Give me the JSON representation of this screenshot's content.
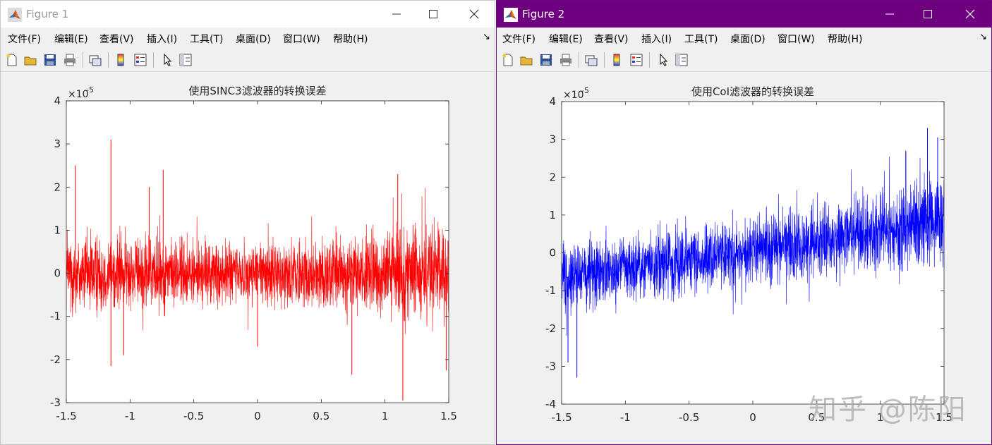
{
  "window1": {
    "title": "Figure 1",
    "menu": [
      "文件(F)",
      "编辑(E)",
      "查看(V)",
      "插入(I)",
      "工具(T)",
      "桌面(D)",
      "窗口(W)",
      "帮助(H)"
    ],
    "menu_arrow": "↘"
  },
  "window2": {
    "title": "Figure 2",
    "menu": [
      "文件(F)",
      "编辑(E)",
      "查看(V)",
      "插入(I)",
      "工具(T)",
      "桌面(D)",
      "窗口(W)",
      "帮助(H)"
    ],
    "menu_arrow": "↘",
    "titlebar_color": "#6e0080"
  },
  "toolbar_icons": [
    "new-figure-icon",
    "open-file-icon",
    "save-icon",
    "print-icon",
    "link-plot-icon",
    "insert-colorbar-icon",
    "insert-legend-icon",
    "edit-plot-arrow-icon",
    "property-inspector-icon"
  ],
  "watermark": "知乎 @陈阳",
  "chart_data": [
    {
      "type": "line",
      "title": "使用SINC3滤波器的转换误差",
      "exponent_label": "×10",
      "exponent": "-5",
      "xlim": [
        -1.5,
        1.5
      ],
      "ylim": [
        -3,
        4
      ],
      "xticks": [
        -1.5,
        -1,
        -0.5,
        0,
        0.5,
        1,
        1.5
      ],
      "yticks": [
        -3,
        -2,
        -1,
        0,
        1,
        2,
        3,
        4
      ],
      "xtick_labels": [
        "-1.5",
        "-1",
        "-0.5",
        "0",
        "0.5",
        "1",
        "1.5"
      ],
      "ytick_labels": [
        "-3",
        "-2",
        "-1",
        "0",
        "1",
        "2",
        "3",
        "4"
      ],
      "color": "#ff0000",
      "series": [
        {
          "description": "dense noise centered at 0, band about ±1.0 (×1e-5) with spikes",
          "x": [
            -1.5,
            -1.0,
            -0.5,
            0,
            0.5,
            1.0,
            1.5
          ],
          "y_center": [
            0,
            0,
            0,
            0,
            0,
            0,
            0
          ],
          "y_band": [
            1.0,
            0.9,
            0.8,
            0.75,
            0.85,
            1.05,
            1.25
          ],
          "spikes": [
            {
              "x": -1.15,
              "y": 3.1
            },
            {
              "x": -0.74,
              "y": 2.4
            },
            {
              "x": -0.85,
              "y": 2.0
            },
            {
              "x": -1.43,
              "y": 2.5
            },
            {
              "x": 1.14,
              "y": -2.95
            },
            {
              "x": 0.74,
              "y": -2.35
            },
            {
              "x": -1.15,
              "y": -2.15
            },
            {
              "x": 0.0,
              "y": -1.7
            },
            {
              "x": 1.1,
              "y": 2.3
            },
            {
              "x": -1.05,
              "y": -1.9
            },
            {
              "x": 1.48,
              "y": -2.25
            }
          ]
        }
      ]
    },
    {
      "type": "line",
      "title": "使用CoI滤波器的转换误差",
      "exponent_label": "×10",
      "exponent": "-5",
      "xlim": [
        -1.5,
        1.5
      ],
      "ylim": [
        -4,
        4
      ],
      "xticks": [
        -1.5,
        -1,
        -0.5,
        0,
        0.5,
        1,
        1.5
      ],
      "yticks": [
        -4,
        -3,
        -2,
        -1,
        0,
        1,
        2,
        3,
        4
      ],
      "xtick_labels": [
        "-1.5",
        "-1",
        "-0.5",
        "0",
        "0.5",
        "1",
        "1.5"
      ],
      "ytick_labels": [
        "-4",
        "-3",
        "-2",
        "-1",
        "0",
        "1",
        "2",
        "3",
        "4"
      ],
      "color": "#0000ff",
      "series": [
        {
          "description": "dense noise with linear upward trend, center from about -0.7 to 0.9 (×1e-5)",
          "x": [
            -1.5,
            -1.0,
            -0.5,
            0,
            0.5,
            1.0,
            1.5
          ],
          "y_center": [
            -0.65,
            -0.42,
            -0.18,
            0.05,
            0.3,
            0.55,
            0.85
          ],
          "y_band": [
            1.0,
            0.95,
            0.9,
            0.9,
            1.0,
            1.1,
            1.25
          ],
          "spikes": [
            {
              "x": 1.37,
              "y": 3.3
            },
            {
              "x": 1.45,
              "y": 3.05
            },
            {
              "x": -1.38,
              "y": -3.3
            },
            {
              "x": -1.45,
              "y": -2.9
            },
            {
              "x": 1.2,
              "y": 2.7
            }
          ]
        }
      ]
    }
  ]
}
